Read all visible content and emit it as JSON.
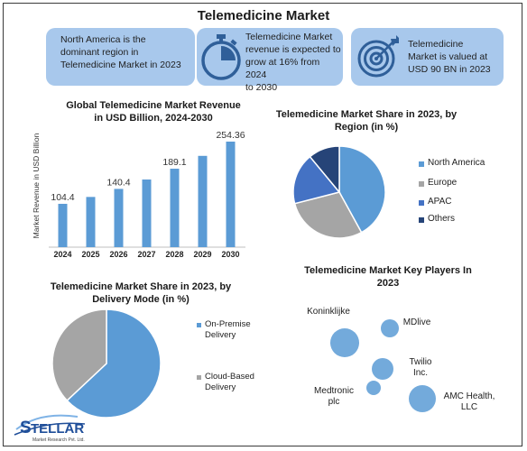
{
  "title": "Telemedicine Market",
  "info_cards": [
    {
      "text_lines": [
        "North America is the",
        "dominant region in",
        "Telemedicine Market in 2023"
      ],
      "icon": "map-icon"
    },
    {
      "text_lines": [
        "Telemedicine Market",
        "revenue is expected to",
        "grow at 16% from 2024",
        "to 2030"
      ],
      "icon": "stopwatch-icon"
    },
    {
      "text_lines": [
        "Telemedicine",
        "Market is valued at",
        "USD 90 BN in 2023"
      ],
      "icon": "target-icon"
    }
  ],
  "colors": {
    "accent": "#5b9bd5",
    "card_bg": "#a8c8ec",
    "icon_dark": "#2f5f99",
    "europe": "#a5a5a5",
    "apac": "#4472c4",
    "others": "#264478"
  },
  "chart_data": [
    {
      "type": "bar",
      "title_lines": [
        "Global Telemedicine Market Revenue",
        "in USD Billion, 2024-2030"
      ],
      "ylabel": "Market Revenue in USD Billion",
      "categories": [
        "2024",
        "2025",
        "2026",
        "2027",
        "2028",
        "2029",
        "2030"
      ],
      "values": [
        104.4,
        121,
        140.4,
        163,
        189.1,
        220,
        254.36
      ],
      "data_labels": [
        "104.4",
        "",
        "140.4",
        "",
        "189.1",
        "",
        "254.36"
      ],
      "ylim": [
        0,
        300
      ],
      "color": "#5b9bd5"
    },
    {
      "type": "pie",
      "title_lines": [
        "Telemedicine Market Share in 2023, by",
        "Region (in %)"
      ],
      "labels": [
        "North America",
        "Europe",
        "APAC",
        "Others"
      ],
      "values": [
        42,
        29,
        18,
        11
      ],
      "colors": [
        "#5b9bd5",
        "#a5a5a5",
        "#4472c4",
        "#264478"
      ],
      "legend": "right"
    },
    {
      "type": "pie",
      "title_lines": [
        "Telemedicine Market Share in 2023, by",
        "Delivery Mode (in %)"
      ],
      "labels": [
        "On-Premise Delivery",
        "Cloud-Based Delivery"
      ],
      "legend_lines": [
        [
          "On-Premise",
          "Delivery"
        ],
        [
          "Cloud-Based",
          "Delivery"
        ]
      ],
      "values": [
        63,
        37
      ],
      "colors": [
        "#5b9bd5",
        "#a5a5a5"
      ],
      "legend": "right"
    },
    {
      "type": "scatter",
      "title_lines": [
        "Telemedicine Market Key Players In",
        "2023"
      ],
      "players": [
        {
          "label_lines": [
            "Koninklijke"
          ]
        },
        {
          "label_lines": [
            "MDlive"
          ]
        },
        {
          "label_lines": [
            "Twilio",
            "Inc."
          ]
        },
        {
          "label_lines": [
            "Medtronic",
            "plc"
          ]
        },
        {
          "label_lines": [
            "AMC Health,",
            "LLC"
          ]
        }
      ]
    }
  ],
  "logo": {
    "name": "STELLAR",
    "tagline": "Market Research Pvt. Ltd."
  }
}
